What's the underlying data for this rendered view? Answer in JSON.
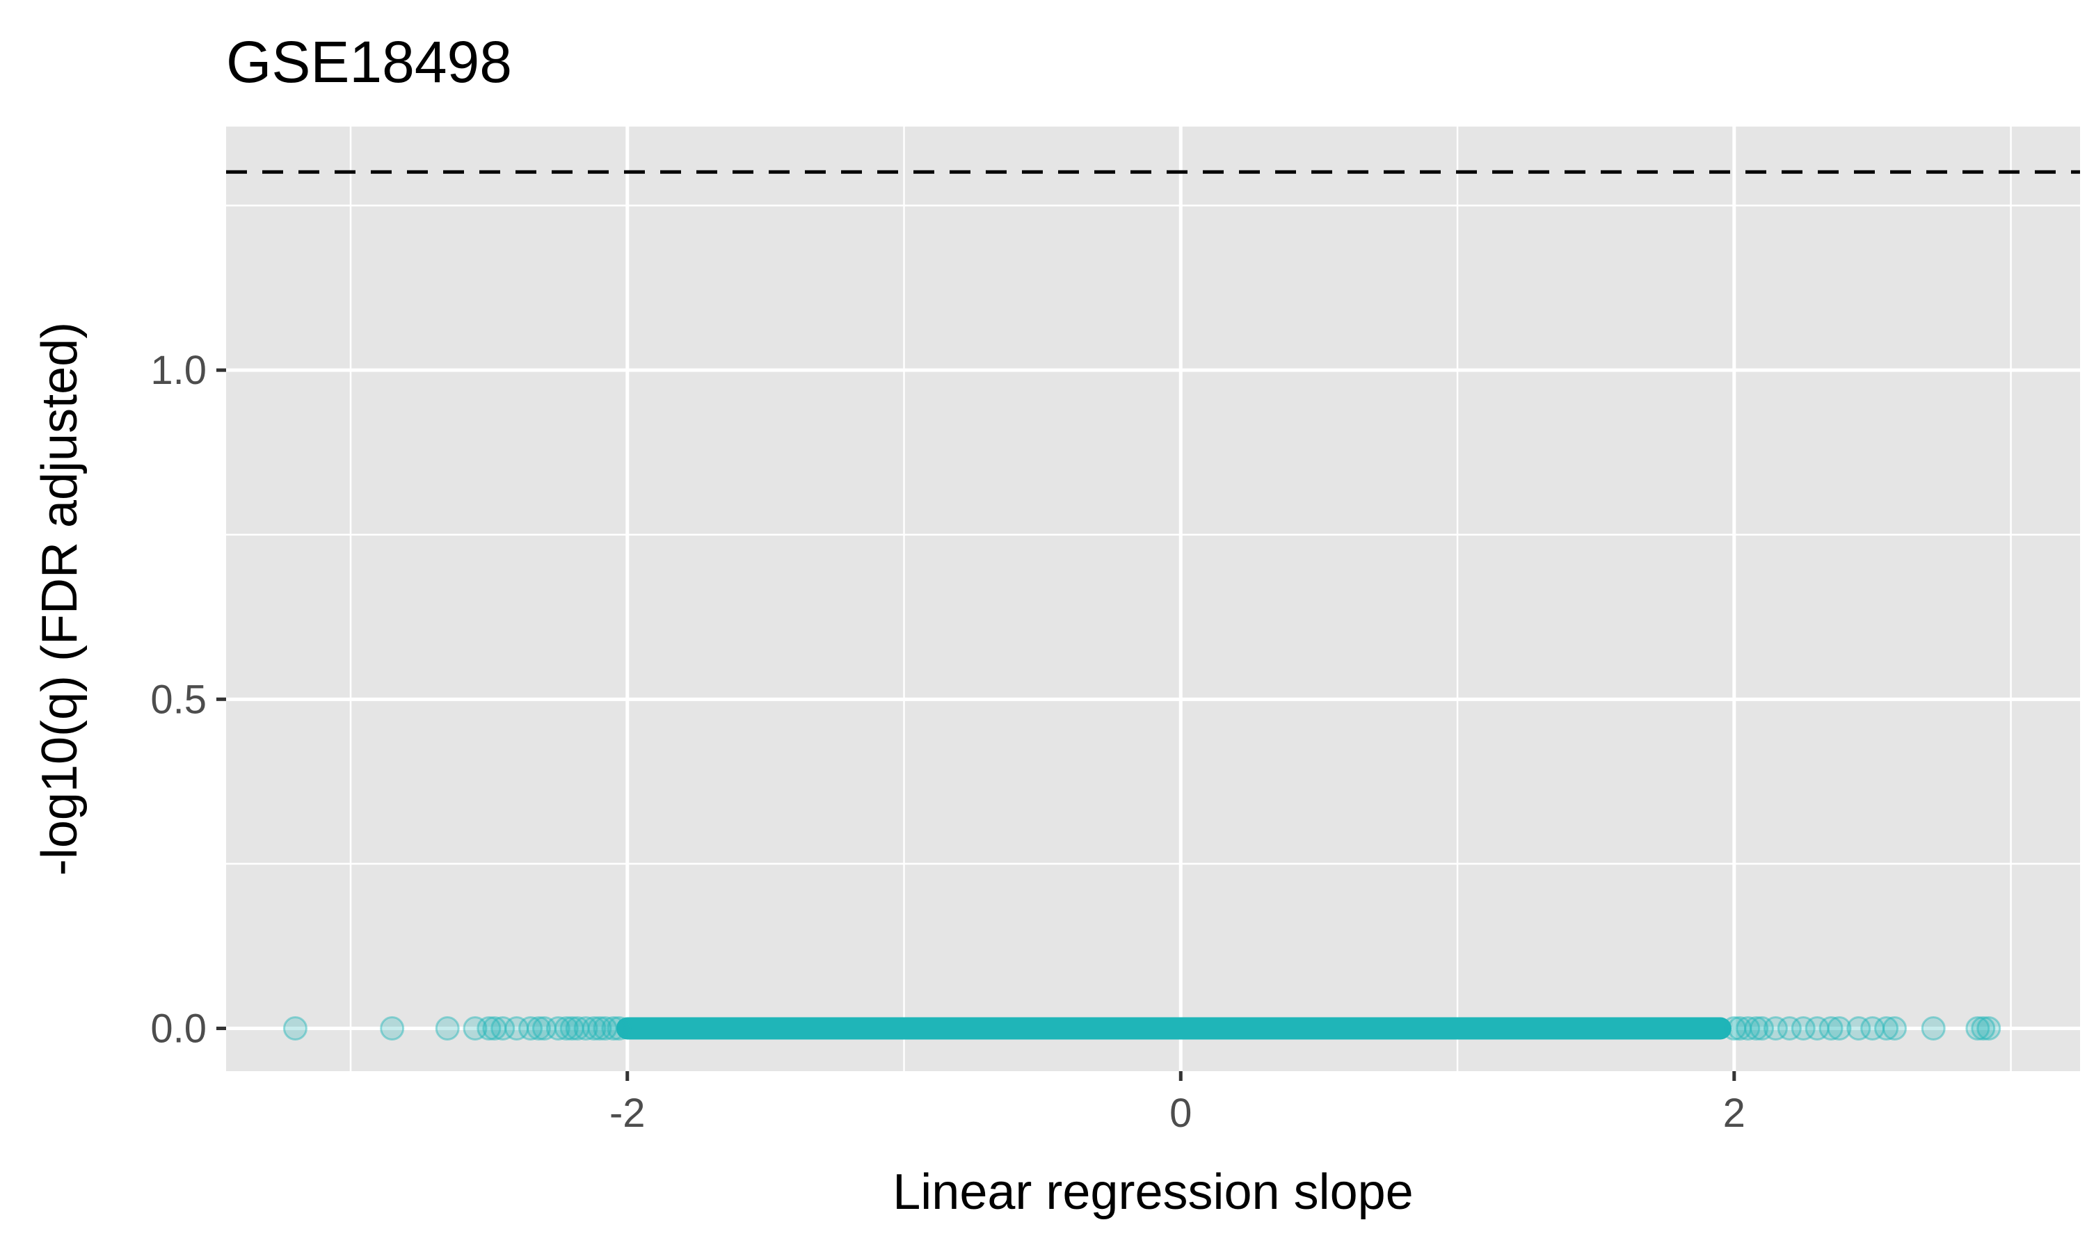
{
  "chart_data": {
    "type": "scatter",
    "title": "GSE18498",
    "xlabel": "Linear regression slope",
    "ylabel": "-log10(q) (FDR adjusted)",
    "xlim": [
      -3.45,
      3.25
    ],
    "ylim": [
      -0.065,
      1.37
    ],
    "x_ticks": [
      -2,
      0,
      2
    ],
    "x_tick_labels": [
      "-2",
      "0",
      "2"
    ],
    "y_ticks": [
      0.0,
      0.5,
      1.0
    ],
    "y_tick_labels": [
      "0.0",
      "0.5",
      "1.0"
    ],
    "grid": true,
    "legend": "none",
    "reference_line": {
      "y": 1.301,
      "style": "dashed",
      "color": "#000000"
    },
    "point_color": "#1fb5b8",
    "point_alpha": 0.25,
    "dense_band": {
      "x_range": [
        -2.0,
        1.95
      ],
      "y": 0.0
    },
    "x": [
      -3.2,
      -2.85,
      -2.65,
      -2.55,
      -2.5,
      -2.48,
      -2.45,
      -2.4,
      -2.35,
      -2.32,
      -2.3,
      -2.25,
      -2.22,
      -2.2,
      -2.18,
      -2.15,
      -2.12,
      -2.1,
      -2.08,
      -2.05,
      -2.03,
      2.0,
      2.02,
      2.05,
      2.08,
      2.1,
      2.15,
      2.2,
      2.25,
      2.3,
      2.35,
      2.38,
      2.45,
      2.5,
      2.55,
      2.58,
      2.72,
      2.88,
      2.9,
      2.92
    ],
    "y": [
      0,
      0,
      0,
      0,
      0,
      0,
      0,
      0,
      0,
      0,
      0,
      0,
      0,
      0,
      0,
      0,
      0,
      0,
      0,
      0,
      0,
      0,
      0,
      0,
      0,
      0,
      0,
      0,
      0,
      0,
      0,
      0,
      0,
      0,
      0,
      0,
      0,
      0,
      0,
      0
    ]
  }
}
